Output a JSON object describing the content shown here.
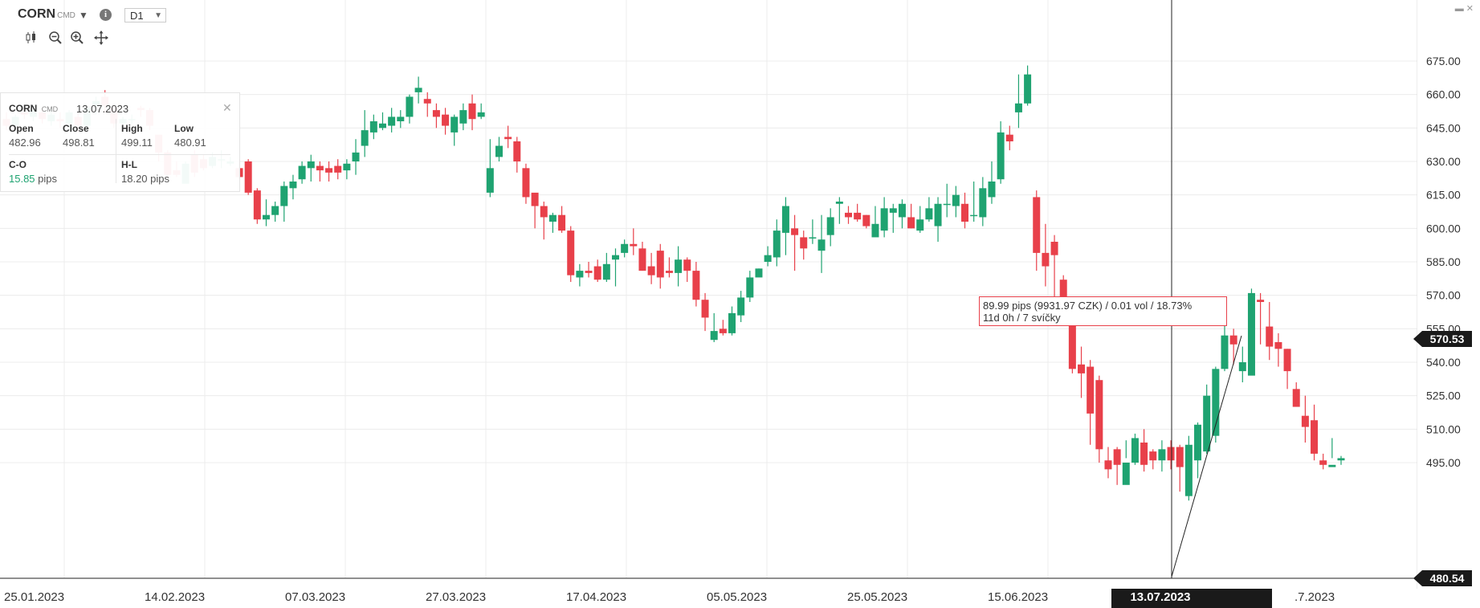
{
  "header": {
    "symbol": "CORN",
    "symbol_type": "CMD",
    "timeframe": "D1",
    "info_icon": "info-icon",
    "caret_icon": "caret-down-icon"
  },
  "toolbar": {
    "icons": [
      "candlestick-icon",
      "zoom-out-icon",
      "zoom-in-icon",
      "crosshair-move-icon"
    ]
  },
  "ohlc_panel": {
    "symbol": "CORN",
    "symbol_type": "CMD",
    "date": "13.07.2023",
    "open_label": "Open",
    "open": "482.96",
    "close_label": "Close",
    "close": "498.81",
    "high_label": "High",
    "high": "499.11",
    "low_label": "Low",
    "low": "480.91",
    "co_label": "C-O",
    "co_value": "15.85",
    "co_unit": "pips",
    "hl_label": "H-L",
    "hl_value": "18.20 pips",
    "close_icon": "close-icon"
  },
  "measure": {
    "line1": "89.99 pips (9931.97 CZK) / 0.01 vol / 18.73%",
    "line2": "11d 0h / 7 svíčky"
  },
  "colors": {
    "up": "#1fa371",
    "down": "#e8404a",
    "grid": "#ececec",
    "axis_bg": "#1a1a1a"
  },
  "chart_data": {
    "type": "candlestick",
    "y_ticks": [
      "675.00",
      "660.00",
      "645.00",
      "630.00",
      "615.00",
      "600.00",
      "585.00",
      "570.00",
      "555.00",
      "540.00",
      "525.00",
      "510.00",
      "495.00"
    ],
    "ylim": [
      476,
      697
    ],
    "x_ticks": [
      "25.01.2023",
      "14.02.2023",
      "07.03.2023",
      "27.03.2023",
      "17.04.2023",
      "05.05.2023",
      "25.05.2023",
      "15.06.2023",
      "13.07.2023",
      "24.07.2023",
      ".7.2023"
    ],
    "last_price": "570.53",
    "crosshair_price": "480.54",
    "crosshair_date": "13.07.2023",
    "candles": [
      [
        649,
        646,
        652,
        644
      ],
      [
        646,
        650,
        651,
        644
      ],
      [
        652,
        651,
        655,
        649
      ],
      [
        650,
        653,
        655,
        648
      ],
      [
        652,
        649,
        654,
        647
      ],
      [
        648,
        651,
        654,
        646
      ],
      [
        649,
        648,
        652,
        645
      ],
      [
        647,
        652,
        653,
        645
      ],
      [
        650,
        646,
        652,
        643
      ],
      [
        646,
        654,
        655,
        644
      ],
      [
        655,
        657,
        659,
        651
      ],
      [
        659,
        655,
        662,
        652
      ],
      [
        654,
        647,
        655,
        645
      ],
      [
        647,
        649,
        650,
        646
      ],
      [
        649,
        649,
        651,
        647
      ],
      [
        654,
        653,
        655,
        650
      ],
      [
        653,
        646,
        654,
        644
      ],
      [
        642,
        634,
        641,
        630
      ],
      [
        634,
        624,
        635,
        622
      ],
      [
        626,
        624,
        630,
        623
      ],
      [
        620,
        629,
        630,
        624
      ],
      [
        633,
        625,
        635,
        623
      ],
      [
        631,
        627,
        633,
        626
      ],
      [
        628,
        632,
        634,
        627
      ],
      [
        631,
        631,
        635,
        627
      ],
      [
        629,
        630,
        632,
        628
      ],
      [
        627,
        623,
        631,
        622
      ],
      [
        630,
        616,
        631,
        615
      ],
      [
        617,
        604,
        618,
        602
      ],
      [
        604,
        606,
        613,
        601
      ],
      [
        606,
        610,
        612,
        603
      ],
      [
        610,
        619,
        621,
        603
      ],
      [
        618,
        621,
        624,
        613
      ],
      [
        622,
        628,
        630,
        620
      ],
      [
        627,
        630,
        633,
        621
      ],
      [
        628,
        626,
        630,
        621
      ],
      [
        627,
        625,
        630,
        621
      ],
      [
        628,
        625,
        631,
        622
      ],
      [
        626,
        629,
        631,
        622
      ],
      [
        630,
        634,
        640,
        624
      ],
      [
        637,
        644,
        653,
        632
      ],
      [
        643,
        648,
        651,
        640
      ],
      [
        645,
        647,
        652,
        644
      ],
      [
        646,
        650,
        654,
        643
      ],
      [
        648,
        650,
        653,
        645
      ],
      [
        650,
        659,
        660,
        647
      ],
      [
        661,
        663,
        668,
        656
      ],
      [
        658,
        656,
        661,
        650
      ],
      [
        653,
        650,
        656,
        645
      ],
      [
        651,
        646,
        654,
        642
      ],
      [
        643,
        650,
        651,
        637
      ],
      [
        647,
        653,
        656,
        644
      ],
      [
        656,
        649,
        660,
        644
      ],
      [
        650,
        652,
        656,
        649
      ],
      [
        616,
        627,
        640,
        614
      ],
      [
        632,
        637,
        641,
        630
      ],
      [
        641,
        640,
        646,
        636
      ],
      [
        639,
        630,
        641,
        625
      ],
      [
        627,
        614,
        629,
        611
      ],
      [
        616,
        610,
        613,
        600
      ],
      [
        610,
        605,
        612,
        595
      ],
      [
        603,
        606,
        607,
        598
      ],
      [
        606,
        599,
        610,
        598
      ],
      [
        599,
        579,
        601,
        576
      ],
      [
        578,
        581,
        584,
        574
      ],
      [
        581,
        580,
        585,
        578
      ],
      [
        583,
        577,
        586,
        576
      ],
      [
        577,
        584,
        589,
        576
      ],
      [
        586,
        588,
        591,
        574
      ],
      [
        589,
        593,
        595,
        587
      ],
      [
        593,
        592,
        600,
        588
      ],
      [
        591,
        581,
        594,
        581
      ],
      [
        583,
        579,
        589,
        575
      ],
      [
        590,
        578,
        593,
        573
      ],
      [
        581,
        580,
        587,
        578
      ],
      [
        580,
        586,
        592,
        574
      ],
      [
        586,
        581,
        587,
        576
      ],
      [
        581,
        568,
        585,
        565
      ],
      [
        568,
        560,
        571,
        554
      ],
      [
        550,
        554,
        562,
        549
      ],
      [
        555,
        553,
        559,
        552
      ],
      [
        553,
        562,
        565,
        552
      ],
      [
        561,
        569,
        572,
        558
      ],
      [
        569,
        578,
        581,
        567
      ],
      [
        578,
        582,
        582,
        581
      ],
      [
        585,
        588,
        592,
        583
      ],
      [
        587,
        599,
        604,
        583
      ],
      [
        598,
        610,
        614,
        588
      ],
      [
        600,
        597,
        606,
        581
      ],
      [
        596,
        591,
        599,
        586
      ],
      [
        596,
        596,
        604,
        593
      ],
      [
        590,
        595,
        606,
        580
      ],
      [
        597,
        605,
        609,
        592
      ],
      [
        611,
        612,
        614,
        602
      ],
      [
        607,
        605,
        610,
        602
      ],
      [
        607,
        604,
        611,
        603
      ],
      [
        606,
        601,
        606,
        600
      ],
      [
        596,
        602,
        610,
        598
      ],
      [
        599,
        609,
        614,
        596
      ],
      [
        607,
        609,
        611,
        598
      ],
      [
        605,
        611,
        613,
        600
      ],
      [
        605,
        600,
        611,
        600
      ],
      [
        599,
        604,
        610,
        598
      ],
      [
        604,
        609,
        614,
        603
      ],
      [
        601,
        611,
        614,
        594
      ],
      [
        611,
        611,
        620,
        605
      ],
      [
        610,
        615,
        619,
        605
      ],
      [
        611,
        603,
        616,
        600
      ],
      [
        606,
        606,
        621,
        603
      ],
      [
        605,
        618,
        623,
        601
      ],
      [
        614,
        621,
        630,
        611
      ],
      [
        622,
        643,
        648,
        620
      ],
      [
        642,
        639,
        646,
        635
      ],
      [
        652,
        656,
        669,
        645
      ],
      [
        656,
        669,
        673,
        655
      ],
      [
        614,
        589,
        617,
        581
      ],
      [
        589,
        583,
        602,
        574
      ],
      [
        594,
        588,
        597,
        559
      ],
      [
        577,
        565,
        579,
        558
      ],
      [
        563,
        537,
        568,
        535
      ],
      [
        539,
        535,
        547,
        524
      ],
      [
        538,
        517,
        541,
        503
      ],
      [
        532,
        501,
        534,
        495
      ],
      [
        496,
        492,
        502,
        488
      ],
      [
        501,
        494,
        502,
        485
      ],
      [
        485,
        495,
        505,
        497
      ],
      [
        495,
        506,
        508,
        494
      ],
      [
        504,
        494,
        510,
        491
      ],
      [
        500,
        496,
        501,
        492
      ],
      [
        496,
        501,
        505,
        491
      ],
      [
        502,
        496,
        505,
        492
      ],
      [
        502,
        493,
        503,
        482
      ],
      [
        480,
        503,
        507,
        478
      ],
      [
        496,
        512,
        513,
        488
      ],
      [
        500,
        525,
        530,
        499
      ],
      [
        507,
        537,
        538,
        504
      ],
      [
        537,
        552,
        557,
        536
      ],
      [
        552,
        548,
        555,
        539
      ],
      [
        536,
        540,
        547,
        531
      ],
      [
        534,
        571,
        573,
        538
      ],
      [
        568,
        567,
        571,
        548
      ],
      [
        556,
        547,
        567,
        541
      ],
      [
        549,
        546,
        553,
        538
      ],
      [
        546,
        536,
        546,
        528
      ],
      [
        528,
        520,
        531,
        521
      ],
      [
        516,
        511,
        525,
        504
      ],
      [
        514,
        499,
        521,
        496
      ],
      [
        496,
        494,
        499,
        492
      ],
      [
        493,
        494,
        506,
        497
      ],
      [
        496,
        497,
        498,
        494
      ]
    ]
  }
}
